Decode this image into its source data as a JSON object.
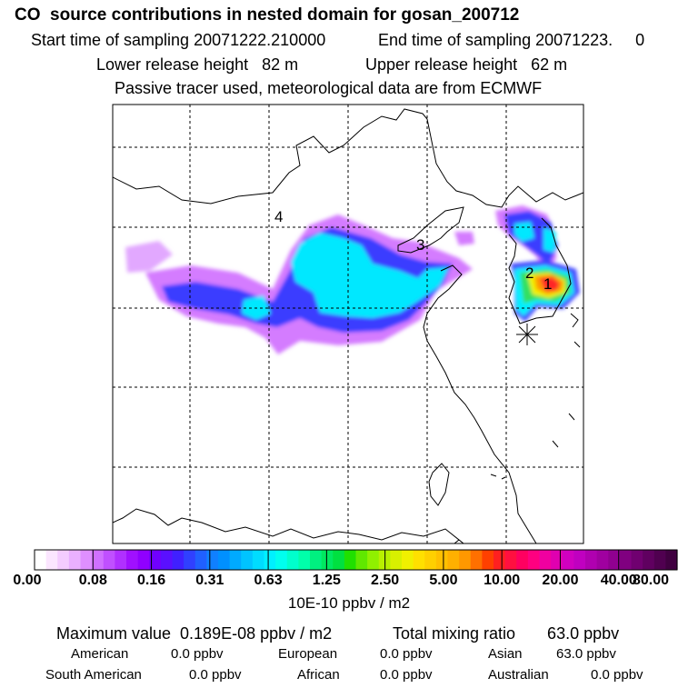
{
  "title": "CO  source contributions in nested domain for gosan_200712",
  "sampling": {
    "start": "Start time of sampling 20071222.210000",
    "end": "End time of sampling 20071223.     0"
  },
  "release": {
    "lower": "Lower release height   82 m",
    "upper": "Upper release height   62 m"
  },
  "tracer_note": "Passive tracer used, meteorological data are from ECMWF",
  "map_labels": {
    "label_1": "1",
    "label_2": "2",
    "label_3": "3",
    "label_4": "4"
  },
  "colorbar": {
    "tick_labels": [
      "0.00",
      "0.08",
      "0.16",
      "0.31",
      "0.63",
      "1.25",
      "2.50",
      "5.00",
      "10.00",
      "20.00",
      "40.00",
      "80.00"
    ],
    "colors": [
      "#ffffff",
      "#fbe6ff",
      "#f4ccff",
      "#eab0ff",
      "#df8fff",
      "#d070ff",
      "#c050ff",
      "#b030ff",
      "#a010ff",
      "#9000ff",
      "#7000ff",
      "#5a10ff",
      "#4020ff",
      "#3040ff",
      "#2060ff",
      "#1080ff",
      "#0090ff",
      "#00aaff",
      "#00c4ff",
      "#00dcff",
      "#00f0ff",
      "#00ffee",
      "#00ffcc",
      "#00ffaa",
      "#00f080",
      "#00e860",
      "#00e040",
      "#20e000",
      "#60e800",
      "#90f000",
      "#b8f000",
      "#d8f000",
      "#f0f000",
      "#ffe000",
      "#ffd000",
      "#ffc000",
      "#ffb000",
      "#ff9800",
      "#ff7000",
      "#ff4000",
      "#ff2020",
      "#ff1040",
      "#ff0060",
      "#ff0080",
      "#f000a0",
      "#e000b0",
      "#d000c0",
      "#c000c0",
      "#b000b0",
      "#a000a0",
      "#900090",
      "#800080",
      "#700070",
      "#600060",
      "#500050",
      "#400040"
    ],
    "unit": "10E-10 ppbv / m2"
  },
  "summary": {
    "maximum": "Maximum value  0.189E-08 ppbv / m2",
    "total": "Total mixing ratio       63.0 ppbv",
    "american": "American",
    "american_val": "0.0 ppbv",
    "european": "European",
    "european_val": "0.0 ppbv",
    "asian": "Asian",
    "asian_val": "63.0 ppbv",
    "south_american": "South American",
    "south_american_val": "0.0 ppbv",
    "african": "African",
    "african_val": "0.0 ppbv",
    "australian": "Australian",
    "australian_val": "0.0 ppbv"
  },
  "colors": {
    "frame": "#000000",
    "grid": "#000000",
    "background": "#ffffff"
  },
  "markers": {
    "receptor": "star-marker"
  }
}
